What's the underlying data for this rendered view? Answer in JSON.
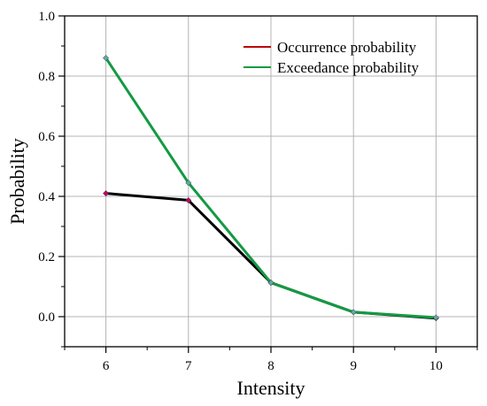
{
  "chart_data": {
    "type": "line",
    "xlabel": "Intensity",
    "ylabel": "Probability",
    "x_ticks": [
      "6",
      "7",
      "8",
      "9",
      "10"
    ],
    "y_ticks": [
      "0.0",
      "0.2",
      "0.4",
      "0.6",
      "0.8",
      "1.0"
    ],
    "xlim": [
      5.5,
      10.5
    ],
    "ylim": [
      -0.1,
      1.0
    ],
    "grid": true,
    "legend_position": "top-right",
    "series": [
      {
        "name": "Occurrence probability",
        "legend_color": "#c00000",
        "line_color": "#000000",
        "marker_color": "#c0006a",
        "x": [
          6,
          7,
          8,
          9,
          10
        ],
        "y": [
          0.41,
          0.387,
          0.113,
          0.015,
          -0.005
        ]
      },
      {
        "name": "Exceedance probability",
        "legend_color": "#139a43",
        "line_color": "#139a43",
        "marker_color": "#5fa8a8",
        "x": [
          6,
          7,
          8,
          9,
          10
        ],
        "y": [
          0.86,
          0.445,
          0.113,
          0.015,
          -0.003
        ]
      }
    ]
  }
}
